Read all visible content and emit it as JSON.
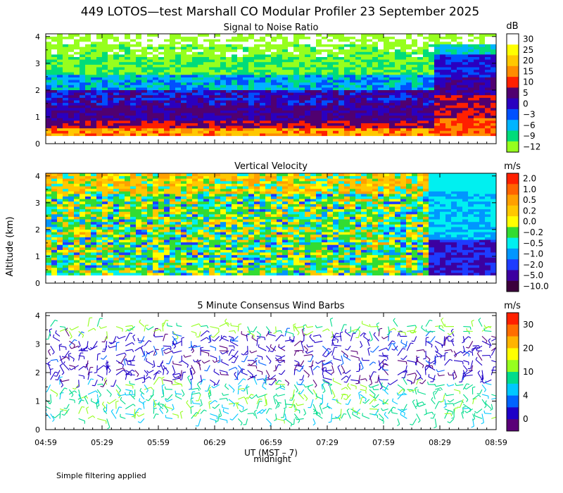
{
  "title": "449 LOTOS—test Marshall CO Modular Profiler 23 September 2025",
  "y_axis_label": "Altitude (km)",
  "x_axis_label": "UT  (MST – 7)",
  "midnight_label": "midnight",
  "footer_note": "Simple filtering applied",
  "chart_data": [
    {
      "type": "heatmap",
      "title": "Signal to Noise Ratio",
      "colorbar_unit": "dB",
      "colorbar_ticks": [
        "30",
        "25",
        "20",
        "15",
        "10",
        "5",
        "0",
        "−3",
        "−6",
        "−9",
        "−12"
      ],
      "colorbar_colors": [
        "#ffffff",
        "#ffff00",
        "#ffc800",
        "#ff8c00",
        "#ff2000",
        "#500070",
        "#2a00c0",
        "#0050ff",
        "#00b4ff",
        "#00dc7a",
        "#96ff1e"
      ],
      "x_ticks": [
        "04:59",
        "05:29",
        "05:59",
        "06:29",
        "06:59",
        "07:29",
        "07:59",
        "08:29",
        "08:59"
      ],
      "y_ticks": [
        "0",
        "1",
        "2",
        "3",
        "4"
      ],
      "xlim": [
        "04:59",
        "08:59"
      ],
      "ylim": [
        0,
        4.1
      ]
    },
    {
      "type": "heatmap",
      "title": "Vertical Velocity",
      "colorbar_unit": "m/s",
      "colorbar_ticks": [
        "2.0",
        "1.0",
        "0.5",
        "0.2",
        "0.0",
        "−0.2",
        "−0.5",
        "−1.0",
        "−2.0",
        "−5.0",
        "−10.0"
      ],
      "colorbar_colors": [
        "#ff2000",
        "#ff6400",
        "#ffa000",
        "#ffc800",
        "#ffff00",
        "#32dc32",
        "#00f0f0",
        "#0096ff",
        "#1e3cff",
        "#3c00a0",
        "#3c003c"
      ],
      "y_ticks": [
        "0",
        "1",
        "2",
        "3",
        "4"
      ],
      "ylim": [
        0,
        4.1
      ]
    },
    {
      "type": "scatter",
      "title": "5 Minute Consensus Wind Barbs",
      "colorbar_unit": "m/s",
      "colorbar_ticks": [
        "30",
        "20",
        "10",
        "4",
        "0"
      ],
      "colorbar_colors": [
        "#ff2000",
        "#ff6e00",
        "#ffb400",
        "#ffff00",
        "#96ff1e",
        "#00dc8c",
        "#00c8ff",
        "#0064ff",
        "#1e00c8",
        "#5a0078"
      ],
      "y_ticks": [
        "0",
        "1",
        "2",
        "3",
        "4"
      ],
      "ylim": [
        0,
        4.1
      ]
    }
  ]
}
